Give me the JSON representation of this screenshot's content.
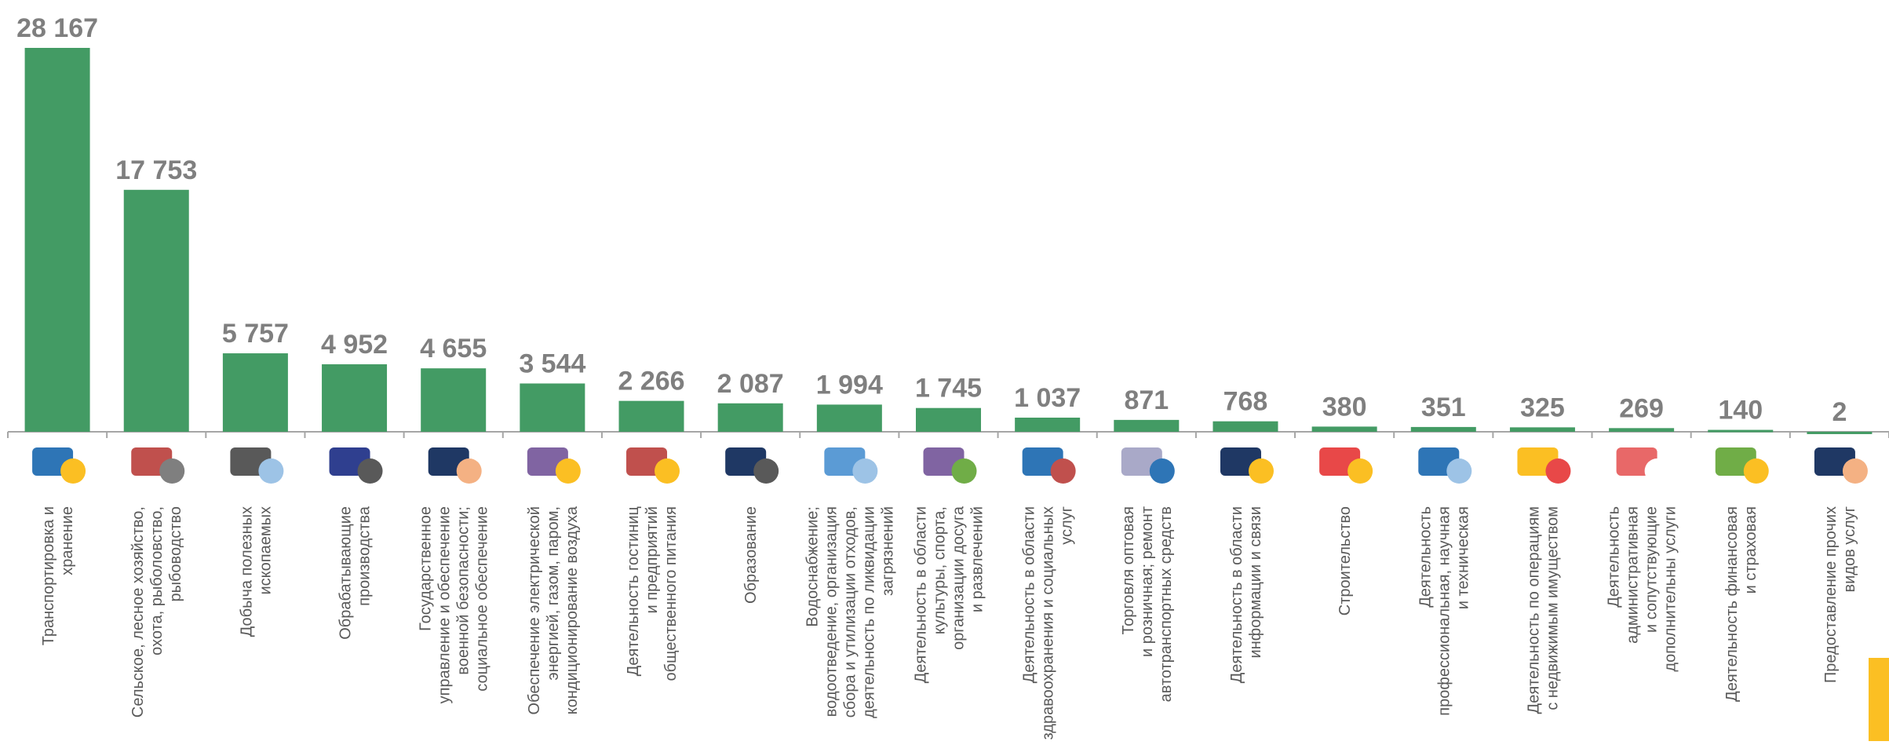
{
  "chart_data": {
    "type": "bar",
    "categories": [
      "Транспортировка и\nхранение",
      "Сельское, лесное хозяйство,\nохота, рыболовство,\nрыбоводство",
      "Добыча полезных\nископаемых",
      "Обрабатывающие\nпроизводства",
      "Государственное\nуправление и обеспечение\nвоенной безопасности;\nсоциальное обеспечение",
      "Обеспечение электрической\nэнергией, газом, паром,\nкондиционирование воздуха",
      "Деятельность гостиниц\nи предприятий\nобщественного питания",
      "Образование",
      "Водоснабжение;\nводоотведение, организация\nсбора и утилизации отходов,\nдеятельность по ликвидации\nзагрязнений",
      "Деятельность в области\nкультуры, спорта,\nорганизации досуга\nи развлечений",
      "Деятельность в области\nздравоохранения и социальных\nуслуг",
      "Торговля оптовая\nи розничная; ремонт\nавтотранспортных средств",
      "Деятельность в области\nинформации и связи",
      "Строительство",
      "Деятельность\nпрофессиональная, научная\nи техническая",
      "Деятельность по операциям\nс недвижимым имуществом",
      "Деятельность\nадминистративная\nи сопутствующие\nдополнительны услуги",
      "Деятельность финансовая\nи страховая",
      "Предоставление прочих\nвидов услуг"
    ],
    "values": [
      28167,
      17753,
      5757,
      4952,
      4655,
      3544,
      2266,
      2087,
      1994,
      1745,
      1037,
      871,
      768,
      380,
      351,
      325,
      269,
      140,
      2
    ],
    "value_labels": [
      "28 167",
      "17 753",
      "5 757",
      "4 952",
      "4 655",
      "3 544",
      "2 266",
      "2 087",
      "1 994",
      "1 745",
      "1 037",
      "871",
      "768",
      "380",
      "351",
      "325",
      "269",
      "140",
      "2"
    ],
    "color": "#439b64",
    "ylim": [
      0,
      28167
    ]
  }
}
